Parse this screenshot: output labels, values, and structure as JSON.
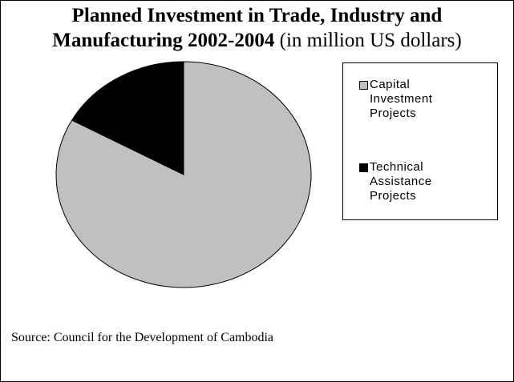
{
  "chart_data": {
    "type": "pie",
    "title": "Planned Investment in Trade, Industry and Manufacturing 2002-2004",
    "subtitle": "(in million US dollars)",
    "categories": [
      "Capital Investment Projects",
      "Technical Assistance Projects"
    ],
    "values": [
      83,
      17
    ],
    "colors": [
      "#c0c0c0",
      "#000000"
    ],
    "legend": "right",
    "source": "Source: Council for the Development of Cambodia"
  }
}
